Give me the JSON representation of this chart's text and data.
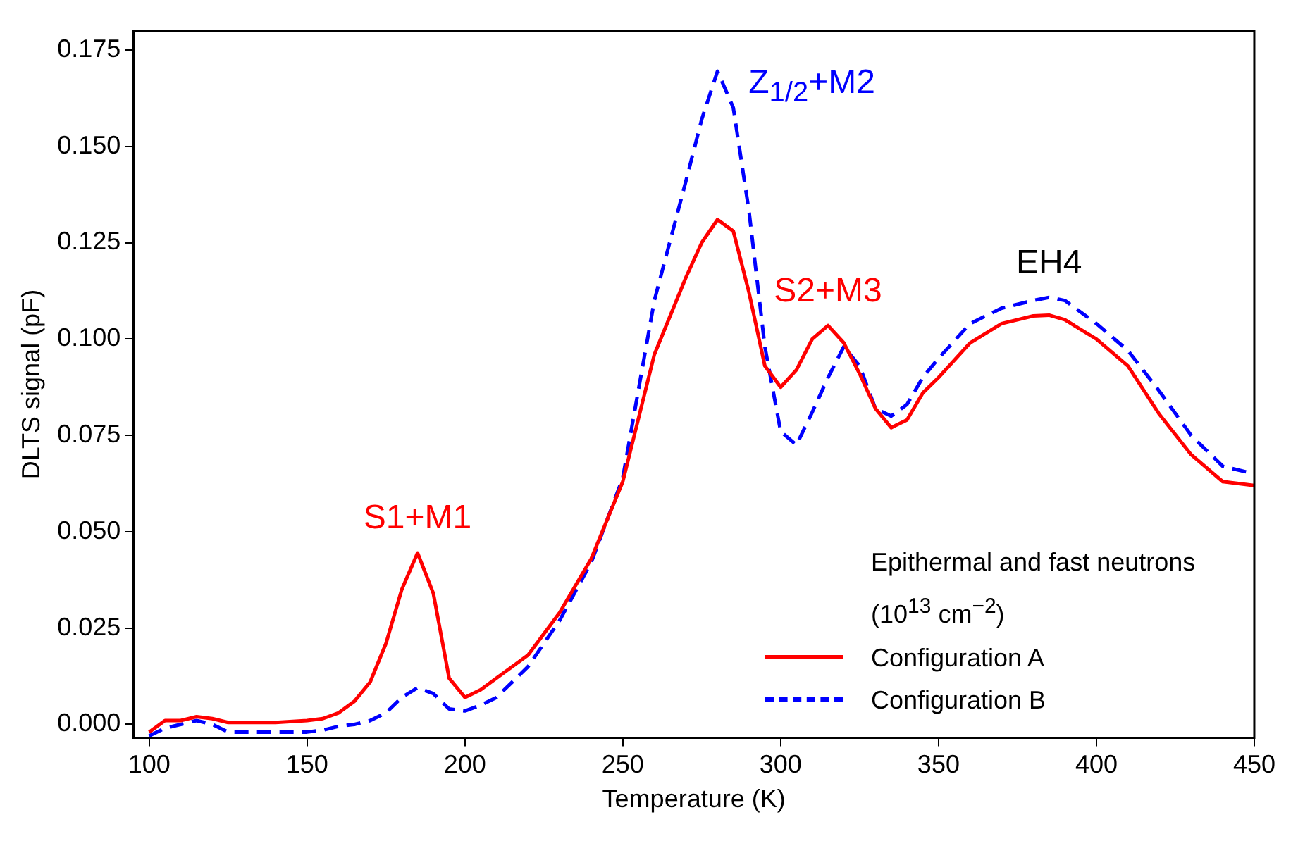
{
  "chart_data": {
    "type": "line",
    "xlabel": "Temperature (K)",
    "ylabel": "DLTS signal (pF)",
    "legend_title": "Epithermal and fast neutrons (10$^{13}$ cm$^{−2}$)",
    "legend": "bottom right",
    "grid": false,
    "marker": "none",
    "x": [
      100,
      105,
      110,
      115,
      120,
      125,
      130,
      140,
      150,
      155,
      160,
      165,
      170,
      175,
      180,
      185,
      190,
      195,
      200,
      205,
      210,
      220,
      230,
      240,
      250,
      260,
      270,
      275,
      280,
      285,
      290,
      295,
      300,
      305,
      310,
      315,
      320,
      325,
      330,
      335,
      340,
      345,
      350,
      360,
      370,
      380,
      385,
      390,
      400,
      410,
      420,
      430,
      440,
      450
    ],
    "series": [
      {
        "name": "Configuration A",
        "color": "#ff0000",
        "line_style": "solid",
        "values": [
          -0.002,
          0.001,
          0.001,
          0.002,
          0.0015,
          0.0005,
          0.0005,
          0.0005,
          0.001,
          0.0015,
          0.003,
          0.006,
          0.011,
          0.021,
          0.035,
          0.0445,
          0.034,
          0.012,
          0.007,
          0.009,
          0.012,
          0.018,
          0.029,
          0.043,
          0.063,
          0.096,
          0.116,
          0.125,
          0.131,
          0.128,
          0.112,
          0.093,
          0.0875,
          0.092,
          0.1,
          0.1035,
          0.099,
          0.091,
          0.082,
          0.077,
          0.079,
          0.086,
          0.09,
          0.099,
          0.104,
          0.106,
          0.1062,
          0.105,
          0.1,
          0.093,
          0.0804,
          0.07,
          0.063,
          0.062
        ]
      },
      {
        "name": "Configuration B",
        "color": "#0000ff",
        "line_style": "dashed",
        "values": [
          -0.003,
          -0.001,
          0.0,
          0.001,
          0.0,
          -0.002,
          -0.002,
          -0.002,
          -0.002,
          -0.0015,
          -0.0005,
          0.0,
          0.001,
          0.003,
          0.007,
          0.0095,
          0.008,
          0.004,
          0.0035,
          0.005,
          0.007,
          0.015,
          0.027,
          0.042,
          0.064,
          0.11,
          0.141,
          0.157,
          0.1695,
          0.16,
          0.133,
          0.098,
          0.076,
          0.0725,
          0.081,
          0.09,
          0.098,
          0.093,
          0.082,
          0.08,
          0.083,
          0.09,
          0.095,
          0.104,
          0.108,
          0.11,
          0.1108,
          0.11,
          0.104,
          0.097,
          0.0864,
          0.075,
          0.067,
          0.065
        ]
      }
    ],
    "xlim": [
      95,
      450
    ],
    "xticks": [
      100,
      150,
      200,
      250,
      300,
      350,
      400,
      450
    ],
    "ylim": [
      -0.0035,
      0.18
    ],
    "yticks": [
      {
        "value": 0,
        "label": "0.000"
      },
      {
        "value": 0.025,
        "label": "0.025"
      },
      {
        "value": 0.05,
        "label": "0.050"
      },
      {
        "value": 0.075,
        "label": "0.075"
      },
      {
        "value": 0.1,
        "label": "0.100"
      },
      {
        "value": 0.125,
        "label": "0.125"
      },
      {
        "value": 0.15,
        "label": "0.150"
      },
      {
        "value": 0.175,
        "label": "0.175"
      }
    ],
    "annotations": [
      {
        "text": "S1+M1",
        "x": 185,
        "y": 0.0445
      },
      {
        "text": "Z$_{1/2}$+M2",
        "x": 280,
        "y": 0.1695
      },
      {
        "text": "S2+M3",
        "x": 315,
        "y": 0.1035
      },
      {
        "text": "EH4",
        "x": 385,
        "y": 0.1108
      }
    ]
  }
}
